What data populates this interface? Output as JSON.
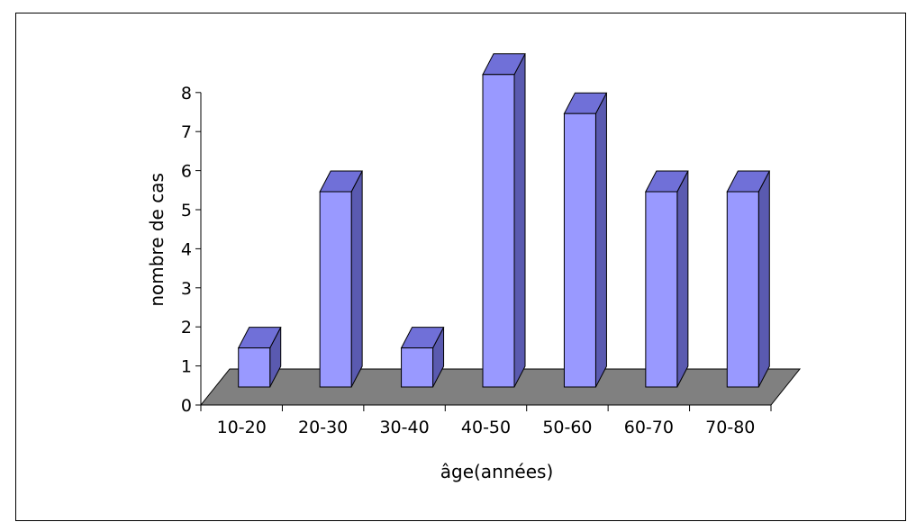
{
  "chart_data": {
    "type": "bar",
    "style": "3d",
    "categories": [
      "10-20",
      "20-30",
      "30-40",
      "40-50",
      "50-60",
      "60-70",
      "70-80"
    ],
    "values": [
      1,
      5,
      1,
      8,
      7,
      5,
      5
    ],
    "title": "",
    "xlabel": "âge(années)",
    "ylabel": "nombre de cas",
    "ylim": [
      0,
      8
    ],
    "yticks": [
      "0",
      "1",
      "2",
      "3",
      "4",
      "5",
      "6",
      "7",
      "8"
    ],
    "grid": false,
    "legend": "none",
    "colors": {
      "bar_front": "#9999ff",
      "bar_top": "#7070d8",
      "bar_side": "#5a5ab0",
      "floor": "#808080",
      "outline": "#000000"
    }
  }
}
